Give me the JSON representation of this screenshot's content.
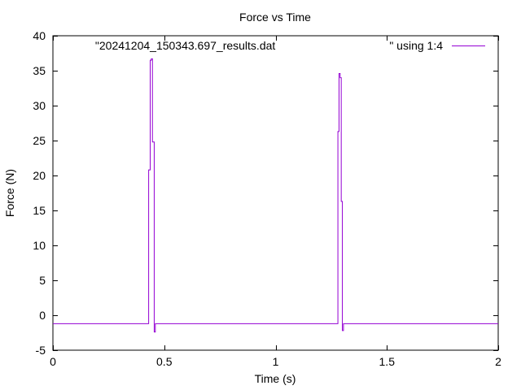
{
  "chart_data": {
    "type": "line",
    "title": "Force vs Time",
    "xlabel": "Time (s)",
    "ylabel": "Force (N)",
    "xlim": [
      0,
      2
    ],
    "ylim": [
      -5,
      40
    ],
    "xticks": [
      0,
      0.5,
      1,
      1.5,
      2
    ],
    "xtick_labels": [
      "0",
      "0.5",
      "1",
      "1.5",
      "2"
    ],
    "yticks": [
      -5,
      0,
      5,
      10,
      15,
      20,
      25,
      30,
      35,
      40
    ],
    "ytick_labels": [
      "-5",
      "0",
      "5",
      "10",
      "15",
      "20",
      "25",
      "30",
      "35",
      "40"
    ],
    "grid": false,
    "legend_position": "top-right",
    "series": [
      {
        "name": "\"20241204_150343.697_results.dat                                    \" using 1:4",
        "color": "#9400d3",
        "step": true,
        "x": [
          0,
          0.43,
          0.437,
          0.442,
          0.447,
          0.455,
          0.46,
          1.28,
          1.285,
          1.29,
          1.295,
          1.3,
          1.305,
          1.31,
          2
        ],
        "y": [
          -1.2,
          20.8,
          36.5,
          36.7,
          24.8,
          -2.4,
          -1.2,
          26.3,
          34.6,
          34.0,
          16.3,
          -2.2,
          -1.2,
          -1.2,
          -1.2
        ]
      }
    ]
  }
}
